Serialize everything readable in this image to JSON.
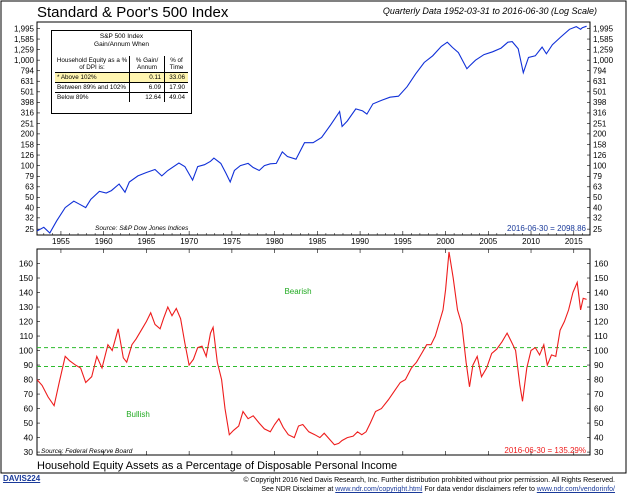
{
  "header": {
    "title": "Standard & Poor's 500 Index",
    "subtitle": "Quarterly Data 1952-03-31 to 2016-06-30 (Log Scale)"
  },
  "stats_table": {
    "title_line1": "S&P 500 Index",
    "title_line2": "Gain/Annum When",
    "col1": "Household Equity as a % of DPI is:",
    "col2": "% Gain/ Annum",
    "col3": "% of Time",
    "rows": [
      {
        "label": "* Above 102%",
        "gain": "0.11",
        "time": "33.06",
        "highlight": true
      },
      {
        "label": "Between 89% and 102%",
        "gain": "6.09",
        "time": "17.90",
        "highlight": false
      },
      {
        "label": "Below 89%",
        "gain": "12.64",
        "time": "49.04",
        "highlight": false
      }
    ]
  },
  "top_source": "Source:  S&P Dow Jones Indices",
  "top_last_value": "2016-06-30 = 2098.86",
  "bottom_source": "Source:  Federal Reserve Board",
  "bottom_last_value": "2016-06-30 = 135.29%",
  "bearish_label": "Bearish",
  "bullish_label": "Bullish",
  "bottom_title": "Household Equity Assets as a Percentage of Disposable Personal Income",
  "chart_code": "DAVIS224",
  "copyright": {
    "line1": "© Copyright 2016 Ned Davis Research, Inc. Further distribution prohibited without prior permission. All Rights Reserved.",
    "line2_a": "See NDR Disclaimer at ",
    "line2_link1": "www.ndr.com/copyright.html",
    "line2_b": "  For data vendor disclaimers refer to ",
    "line2_link2": "www.ndr.com/vendorinfo/"
  },
  "colors": {
    "sp500_line": "#1030d8",
    "equity_line": "#ee1c1c",
    "threshold": "#2dbb2d",
    "bearish": "#22aa22",
    "bullish": "#22aa22",
    "highlight_row": "#fff5b0",
    "last_value": "#1a3a9a",
    "last_value_bottom": "#ee1c1c"
  },
  "chart_data": [
    {
      "type": "line",
      "title": "Standard & Poor's 500 Index",
      "scale": "log",
      "ylim": [
        22,
        2300
      ],
      "xlim": [
        1952.2,
        2016.9
      ],
      "y_ticks": [
        25,
        32,
        40,
        50,
        63,
        79,
        100,
        126,
        158,
        200,
        251,
        316,
        398,
        501,
        631,
        794,
        1000,
        1259,
        1585,
        1995
      ],
      "y_tick_labels": [
        "25",
        "32",
        "40",
        "50",
        "63",
        "79",
        "100",
        "126",
        "158",
        "200",
        "251",
        "316",
        "398",
        "501",
        "631",
        "794",
        "1,000",
        "1,259",
        "1,585",
        "1,995"
      ],
      "x_ticks": [
        1955,
        1960,
        1965,
        1970,
        1975,
        1980,
        1985,
        1990,
        1995,
        2000,
        2005,
        2010,
        2015
      ],
      "series": [
        {
          "x": [
            1952.2,
            1953.0,
            1953.7,
            1954.5,
            1955.5,
            1956.5,
            1957.2,
            1957.9,
            1958.5,
            1959.5,
            1960.3,
            1960.9,
            1961.8,
            1962.5,
            1963.0,
            1964.0,
            1965.0,
            1966.0,
            1966.8,
            1967.5,
            1968.8,
            1969.5,
            1970.4,
            1971.0,
            1971.8,
            1972.5,
            1972.9,
            1973.7,
            1974.3,
            1974.8,
            1975.3,
            1976.0,
            1976.9,
            1977.5,
            1978.2,
            1978.8,
            1979.5,
            1980.2,
            1980.9,
            1981.5,
            1982.5,
            1983.5,
            1984.5,
            1985.5,
            1986.5,
            1987.6,
            1987.9,
            1988.5,
            1989.5,
            1990.3,
            1990.8,
            1991.5,
            1992.5,
            1993.5,
            1994.5,
            1995.5,
            1996.5,
            1997.5,
            1998.5,
            1999.5,
            2000.2,
            2000.8,
            2001.5,
            2002.5,
            2002.8,
            2003.5,
            2004.5,
            2005.5,
            2006.5,
            2007.3,
            2007.8,
            2008.5,
            2009.1,
            2009.7,
            2010.5,
            2011.3,
            2011.8,
            2012.5,
            2013.5,
            2014.5,
            2015.3,
            2015.8,
            2016.0,
            2016.5
          ],
          "values": [
            24,
            26,
            23,
            30,
            40,
            46,
            43,
            40,
            48,
            57,
            55,
            58,
            67,
            56,
            70,
            80,
            86,
            92,
            80,
            90,
            106,
            98,
            73,
            98,
            102,
            110,
            118,
            105,
            85,
            70,
            90,
            100,
            105,
            96,
            90,
            100,
            104,
            105,
            135,
            122,
            115,
            165,
            165,
            185,
            240,
            325,
            235,
            265,
            345,
            330,
            308,
            385,
            415,
            445,
            455,
            560,
            740,
            950,
            1100,
            1350,
            1480,
            1320,
            1180,
            830,
            880,
            1000,
            1130,
            1200,
            1300,
            1480,
            1500,
            1280,
            760,
            1060,
            1100,
            1330,
            1150,
            1400,
            1660,
            1960,
            2080,
            1960,
            2030,
            2098.86
          ]
        }
      ]
    },
    {
      "type": "line",
      "title": "Household Equity Assets as a Percentage of Disposable Personal Income",
      "ylim": [
        28,
        170
      ],
      "xlim": [
        1952.2,
        2016.9
      ],
      "y_ticks": [
        30,
        40,
        50,
        60,
        70,
        80,
        90,
        100,
        110,
        120,
        130,
        140,
        150,
        160
      ],
      "thresholds": [
        102,
        89
      ],
      "x_ticks": [
        1955,
        1960,
        1965,
        1970,
        1975,
        1980,
        1985,
        1990,
        1995,
        2000,
        2005,
        2010,
        2015
      ],
      "series": [
        {
          "x": [
            1952.2,
            1952.8,
            1953.5,
            1954.2,
            1954.8,
            1955.5,
            1956.0,
            1956.7,
            1957.3,
            1957.9,
            1958.6,
            1959.2,
            1959.8,
            1960.5,
            1961.0,
            1961.7,
            1962.3,
            1962.7,
            1963.3,
            1963.8,
            1964.5,
            1965.0,
            1965.5,
            1966.0,
            1966.6,
            1967.0,
            1967.5,
            1968.0,
            1968.5,
            1969.0,
            1969.5,
            1970.0,
            1970.5,
            1971.0,
            1971.5,
            1972.0,
            1972.5,
            1972.8,
            1973.3,
            1973.8,
            1974.2,
            1974.7,
            1975.2,
            1975.8,
            1976.3,
            1976.9,
            1977.5,
            1978.2,
            1978.8,
            1979.5,
            1980.0,
            1980.5,
            1981.0,
            1981.6,
            1982.3,
            1982.8,
            1983.3,
            1984.0,
            1984.7,
            1985.3,
            1985.8,
            1986.4,
            1987.0,
            1987.5,
            1987.9,
            1988.5,
            1989.2,
            1989.7,
            1990.2,
            1990.7,
            1991.2,
            1991.8,
            1992.5,
            1993.3,
            1994.0,
            1994.7,
            1995.3,
            1996.0,
            1996.6,
            1997.2,
            1997.8,
            1998.3,
            1998.8,
            1999.3,
            1999.7,
            2000.0,
            2000.4,
            2000.9,
            2001.4,
            2001.9,
            2002.4,
            2002.8,
            2003.2,
            2003.7,
            2004.2,
            2004.8,
            2005.4,
            2006.0,
            2006.6,
            2007.2,
            2007.7,
            2008.2,
            2008.7,
            2009.0,
            2009.5,
            2010.0,
            2010.5,
            2011.0,
            2011.5,
            2011.9,
            2012.4,
            2012.9,
            2013.4,
            2013.9,
            2014.4,
            2014.9,
            2015.4,
            2015.8,
            2016.1,
            2016.5
          ],
          "values": [
            80,
            76,
            68,
            62,
            78,
            96,
            93,
            90,
            88,
            78,
            82,
            96,
            88,
            104,
            100,
            115,
            95,
            92,
            104,
            108,
            115,
            120,
            126,
            118,
            115,
            122,
            130,
            124,
            129,
            122,
            105,
            90,
            94,
            102,
            103,
            96,
            112,
            116,
            92,
            80,
            60,
            42,
            45,
            48,
            58,
            53,
            55,
            50,
            46,
            44,
            49,
            53,
            47,
            42,
            40,
            48,
            49,
            44,
            42,
            40,
            43,
            39,
            35,
            36,
            38,
            40,
            41,
            44,
            42,
            44,
            50,
            58,
            60,
            66,
            72,
            78,
            80,
            88,
            92,
            98,
            104,
            104,
            110,
            120,
            128,
            142,
            168,
            150,
            128,
            118,
            92,
            75,
            90,
            96,
            82,
            88,
            98,
            101,
            106,
            112,
            106,
            100,
            76,
            65,
            88,
            100,
            102,
            97,
            104,
            90,
            97,
            96,
            114,
            120,
            128,
            140,
            147,
            128,
            136,
            135.29
          ]
        }
      ]
    }
  ]
}
